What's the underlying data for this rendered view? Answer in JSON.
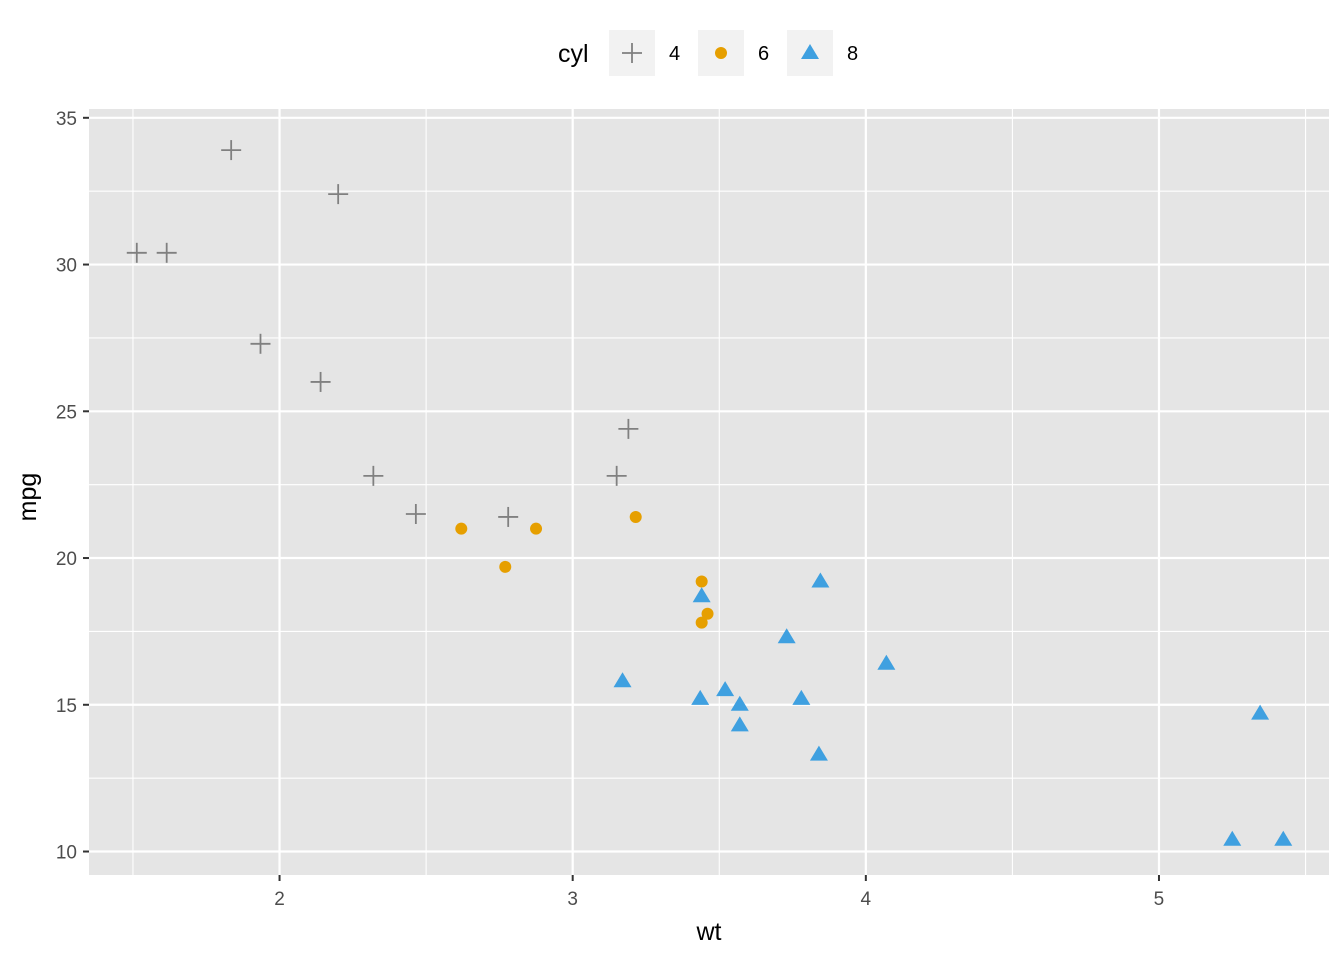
{
  "chart_data": {
    "type": "scatter",
    "xlabel": "wt",
    "ylabel": "mpg",
    "xlim": [
      1.35,
      5.58
    ],
    "ylim": [
      9.2,
      35.3
    ],
    "x_ticks": [
      2,
      3,
      4,
      5
    ],
    "y_ticks": [
      10,
      15,
      20,
      25,
      30,
      35
    ],
    "grid": true,
    "legend": {
      "title": "cyl",
      "position": "top"
    },
    "colors": {
      "panel_background": "#e5e5e5",
      "grid": "#ffffff"
    },
    "series": [
      {
        "name": "4",
        "shape": "plus",
        "color": "#808080",
        "points": [
          {
            "x": 1.513,
            "y": 30.4
          },
          {
            "x": 1.615,
            "y": 30.4
          },
          {
            "x": 1.835,
            "y": 33.9
          },
          {
            "x": 1.935,
            "y": 27.3
          },
          {
            "x": 2.14,
            "y": 26.0
          },
          {
            "x": 2.2,
            "y": 32.4
          },
          {
            "x": 2.32,
            "y": 22.8
          },
          {
            "x": 2.465,
            "y": 21.5
          },
          {
            "x": 2.78,
            "y": 21.4
          },
          {
            "x": 3.15,
            "y": 22.8
          },
          {
            "x": 3.19,
            "y": 24.4
          }
        ]
      },
      {
        "name": "6",
        "shape": "circle",
        "color": "#e69f00",
        "points": [
          {
            "x": 2.62,
            "y": 21.0
          },
          {
            "x": 2.77,
            "y": 19.7
          },
          {
            "x": 2.875,
            "y": 21.0
          },
          {
            "x": 3.215,
            "y": 21.4
          },
          {
            "x": 3.44,
            "y": 17.8
          },
          {
            "x": 3.44,
            "y": 19.2
          },
          {
            "x": 3.46,
            "y": 18.1
          }
        ]
      },
      {
        "name": "8",
        "shape": "triangle",
        "color": "#3fa0e0",
        "points": [
          {
            "x": 3.17,
            "y": 15.8
          },
          {
            "x": 3.435,
            "y": 15.2
          },
          {
            "x": 3.44,
            "y": 18.7
          },
          {
            "x": 3.52,
            "y": 15.5
          },
          {
            "x": 3.57,
            "y": 14.3
          },
          {
            "x": 3.57,
            "y": 15.0
          },
          {
            "x": 3.73,
            "y": 17.3
          },
          {
            "x": 3.78,
            "y": 15.2
          },
          {
            "x": 3.84,
            "y": 13.3
          },
          {
            "x": 3.845,
            "y": 19.2
          },
          {
            "x": 4.07,
            "y": 16.4
          },
          {
            "x": 5.25,
            "y": 10.4
          },
          {
            "x": 5.345,
            "y": 14.7
          },
          {
            "x": 5.424,
            "y": 10.4
          }
        ]
      }
    ]
  }
}
